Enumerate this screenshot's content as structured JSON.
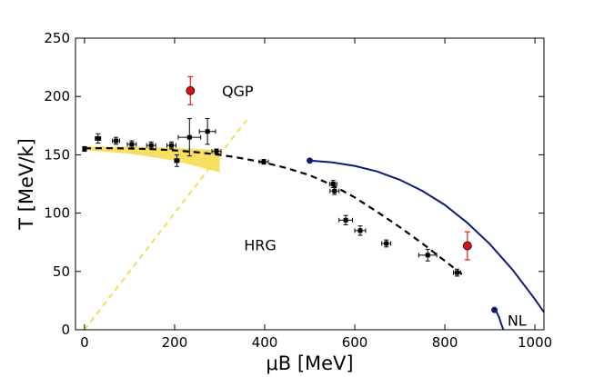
{
  "chart_data": {
    "type": "scatter",
    "xlabel": "μB [MeV]",
    "ylabel": "T [MeV/k]",
    "xlim": [
      -20,
      1020
    ],
    "ylim": [
      0,
      250
    ],
    "x_ticks": [
      0,
      200,
      400,
      600,
      800,
      1000
    ],
    "y_ticks": [
      0,
      50,
      100,
      150,
      200,
      250
    ],
    "x_tick_labels": [
      "0",
      "200",
      "400",
      "600",
      "800",
      "1000"
    ],
    "y_tick_labels": [
      "0",
      "50",
      "100",
      "150",
      "200",
      "250"
    ],
    "regions": [
      {
        "label": "QGP",
        "x": 340,
        "y": 205
      },
      {
        "label": "HRG",
        "x": 390,
        "y": 73
      },
      {
        "label": "NL",
        "x": 960,
        "y": 8
      }
    ],
    "series": [
      {
        "name": "freeze-out data",
        "style": "black markers with error bars",
        "points": [
          {
            "x": 0,
            "y": 155,
            "xerr": 3,
            "yerr": 2
          },
          {
            "x": 30,
            "y": 164,
            "xerr": 6,
            "yerr": 4
          },
          {
            "x": 70,
            "y": 162,
            "xerr": 8,
            "yerr": 3
          },
          {
            "x": 105,
            "y": 159,
            "xerr": 10,
            "yerr": 3
          },
          {
            "x": 148,
            "y": 158,
            "xerr": 10,
            "yerr": 3
          },
          {
            "x": 193,
            "y": 158,
            "xerr": 10,
            "yerr": 3
          },
          {
            "x": 205,
            "y": 145,
            "xerr": 5,
            "yerr": 5
          },
          {
            "x": 233,
            "y": 165,
            "xerr": 25,
            "yerr": 16
          },
          {
            "x": 273,
            "y": 170,
            "xerr": 18,
            "yerr": 11
          },
          {
            "x": 293,
            "y": 153,
            "xerr": 10,
            "yerr": 2
          },
          {
            "x": 398,
            "y": 144,
            "xerr": 10,
            "yerr": 2
          },
          {
            "x": 552,
            "y": 125,
            "xerr": 8,
            "yerr": 3
          },
          {
            "x": 555,
            "y": 119,
            "xerr": 10,
            "yerr": 3
          },
          {
            "x": 580,
            "y": 94,
            "xerr": 15,
            "yerr": 4
          },
          {
            "x": 612,
            "y": 85,
            "xerr": 12,
            "yerr": 4
          },
          {
            "x": 670,
            "y": 74,
            "xerr": 10,
            "yerr": 3
          },
          {
            "x": 762,
            "y": 64,
            "xerr": 20,
            "yerr": 5
          },
          {
            "x": 827,
            "y": 49,
            "xerr": 8,
            "yerr": 3
          }
        ]
      },
      {
        "name": "red points",
        "style": "red circles with red error bars",
        "points": [
          {
            "x": 235,
            "y": 205,
            "yerr": 12
          },
          {
            "x": 850,
            "y": 72,
            "yerr": 12
          }
        ]
      },
      {
        "name": "dashed crossover curve",
        "style": "black dashed line",
        "x": [
          0,
          50,
          100,
          150,
          200,
          250,
          300,
          350,
          400,
          450,
          500,
          550,
          600,
          650,
          700,
          750,
          800,
          840
        ],
        "y": [
          155.5,
          155.7,
          155.4,
          154.8,
          153.8,
          152.2,
          150.0,
          147.0,
          143.3,
          138.5,
          132.5,
          124.0,
          113.5,
          101.0,
          88.0,
          74.0,
          59.0,
          47.0
        ]
      },
      {
        "name": "solid transition curve",
        "style": "dark blue solid line with endpoint",
        "x": [
          500,
          550,
          600,
          650,
          700,
          750,
          800,
          850,
          900,
          950,
          1000,
          1020
        ],
        "y": [
          145,
          143.5,
          140.5,
          135.7,
          128.6,
          119.1,
          107.0,
          91.7,
          73.4,
          51.6,
          26.2,
          15
        ]
      },
      {
        "name": "nuclear liquid curve",
        "style": "dark blue solid line with endpoint",
        "x": [
          910,
          915,
          920,
          925,
          930
        ],
        "y": [
          17,
          15,
          11,
          5,
          0
        ]
      },
      {
        "name": "yellow dashed line",
        "style": "yellow dashed",
        "x": [
          0,
          360
        ],
        "y": [
          0,
          180
        ]
      },
      {
        "name": "yellow band",
        "style": "yellow filled band",
        "upper": {
          "x": [
            0,
            100,
            200,
            300
          ],
          "y": [
            157,
            157,
            156,
            154
          ]
        },
        "lower": {
          "x": [
            0,
            100,
            200,
            300
          ],
          "y": [
            154,
            151,
            145,
            135
          ]
        }
      }
    ]
  }
}
